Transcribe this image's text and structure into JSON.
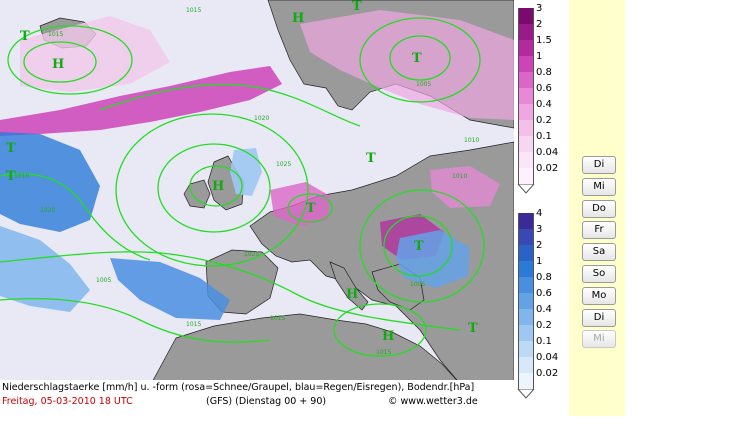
{
  "caption": {
    "line1": "Niederschlagstaerke [mm/h] u. -form (rosa=Schnee/Graupel, blau=Regen/Eisregen), Bodendr.[hPa]",
    "date": "Freitag, 05-03-2010   18 UTC",
    "run": "(GFS)   (Dienstag 00 + 90)",
    "credit": "www.wetter3.de",
    "copyright_symbol": "©"
  },
  "legend_snow": {
    "labels": [
      "3",
      "2",
      "1.5",
      "1",
      "0.8",
      "0.6",
      "0.4",
      "0.2",
      "0.1",
      "0.04",
      "0.02"
    ],
    "colors": [
      "#7a0a6e",
      "#9a1a8a",
      "#b22aa0",
      "#cc44b8",
      "#dc66c8",
      "#e888d6",
      "#f0a6e2",
      "#f4c0ea",
      "#f8d6f2",
      "#fbe6f8",
      "#fdf2fc"
    ]
  },
  "legend_rain": {
    "labels": [
      "4",
      "3",
      "2",
      "1",
      "0.8",
      "0.6",
      "0.4",
      "0.2",
      "0.1",
      "0.04",
      "0.02"
    ],
    "colors": [
      "#3a2a9a",
      "#3848b4",
      "#2a62c8",
      "#2a7ad8",
      "#4a8ee0",
      "#64a2e6",
      "#80b6ec",
      "#9ec8f2",
      "#bcdaf6",
      "#d6e8fa",
      "#ecf4fc"
    ]
  },
  "day_buttons": [
    {
      "label": "Di",
      "enabled": true
    },
    {
      "label": "Mi",
      "enabled": true
    },
    {
      "label": "Do",
      "enabled": true
    },
    {
      "label": "Fr",
      "enabled": true
    },
    {
      "label": "Sa",
      "enabled": true
    },
    {
      "label": "So",
      "enabled": true
    },
    {
      "label": "Mo",
      "enabled": true
    },
    {
      "label": "Di",
      "enabled": true
    },
    {
      "label": "Mi",
      "enabled": false
    }
  ],
  "pressure_centers": [
    "T",
    "H",
    "T",
    "H",
    "T",
    "H",
    "T",
    "T",
    "T",
    "T",
    "T",
    "H",
    "H",
    "T"
  ],
  "isobar_labels": [
    "1015",
    "1015",
    "1005",
    "1020",
    "1025",
    "1010",
    "1005",
    "1025",
    "1020",
    "1010",
    "1015",
    "1005",
    "1010",
    "1015",
    "1015"
  ],
  "colors": {
    "ocean": "#e9e9f6",
    "land": "#9a9a9a",
    "isobar": "#22dd22",
    "coastline": "#222222",
    "date_text": "#cc0000",
    "side_strip": "#ffffcc"
  }
}
